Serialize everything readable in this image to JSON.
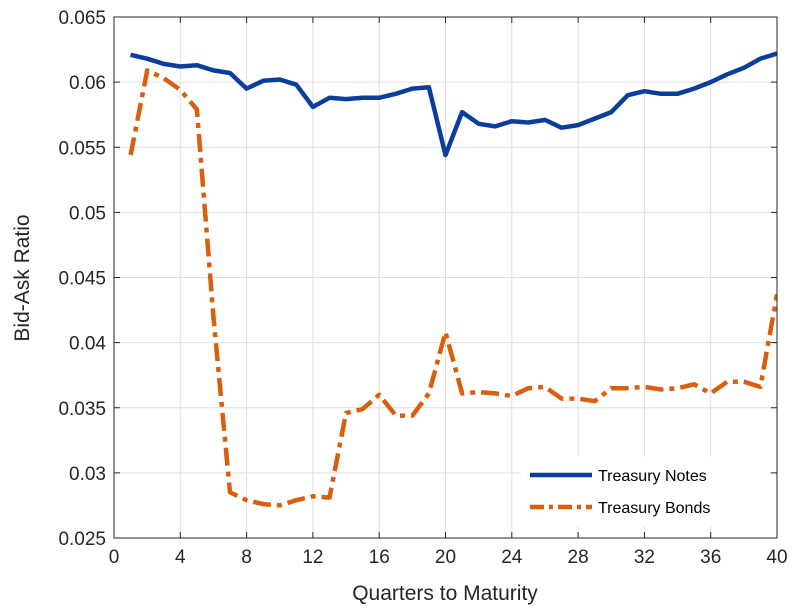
{
  "chart_data": {
    "type": "line",
    "xlabel": "Quarters to Maturity",
    "ylabel": "Bid-Ask Ratio",
    "xlim": [
      0,
      40
    ],
    "ylim": [
      0.025,
      0.065
    ],
    "xticks": [
      0,
      4,
      8,
      12,
      16,
      20,
      24,
      28,
      32,
      36,
      40
    ],
    "xtick_labels": [
      "0",
      "4",
      "8",
      "12",
      "16",
      "20",
      "24",
      "28",
      "32",
      "36",
      "40"
    ],
    "yticks": [
      0.025,
      0.03,
      0.035,
      0.04,
      0.045,
      0.05,
      0.055,
      0.06,
      0.065
    ],
    "ytick_labels": [
      "0.025",
      "0.03",
      "0.035",
      "0.04",
      "0.045",
      "0.05",
      "0.055",
      "0.06",
      "0.065"
    ],
    "grid": true,
    "legend_position": "bottom-right",
    "x": [
      1,
      2,
      3,
      4,
      5,
      6,
      7,
      8,
      9,
      10,
      11,
      12,
      13,
      14,
      15,
      16,
      17,
      18,
      19,
      20,
      21,
      22,
      23,
      24,
      25,
      26,
      27,
      28,
      29,
      30,
      31,
      32,
      33,
      34,
      35,
      36,
      37,
      38,
      39,
      40
    ],
    "series": [
      {
        "name": "Treasury Notes",
        "color": "#0b3d9c",
        "style": "solid",
        "values": [
          0.0621,
          0.0618,
          0.0614,
          0.0612,
          0.0613,
          0.0609,
          0.0607,
          0.0595,
          0.0601,
          0.0602,
          0.0598,
          0.0581,
          0.0588,
          0.0587,
          0.0588,
          0.0588,
          0.0591,
          0.0595,
          0.0596,
          0.0544,
          0.0577,
          0.0568,
          0.0566,
          0.057,
          0.0569,
          0.0571,
          0.0565,
          0.0567,
          0.0572,
          0.0577,
          0.059,
          0.0593,
          0.0591,
          0.0591,
          0.0595,
          0.06,
          0.0606,
          0.0611,
          0.0618,
          0.0622
        ]
      },
      {
        "name": "Treasury Bonds",
        "color": "#d95f0e",
        "style": "dashdot",
        "values": [
          0.0544,
          0.0609,
          0.0603,
          0.0594,
          0.0579,
          0.042,
          0.0285,
          0.0279,
          0.0276,
          0.0275,
          0.0279,
          0.0282,
          0.0281,
          0.0346,
          0.0349,
          0.036,
          0.0344,
          0.0344,
          0.0361,
          0.0408,
          0.0361,
          0.0362,
          0.0361,
          0.0359,
          0.0365,
          0.0366,
          0.0357,
          0.0357,
          0.0355,
          0.0365,
          0.0365,
          0.0366,
          0.0364,
          0.0365,
          0.0368,
          0.0361,
          0.037,
          0.037,
          0.0366,
          0.0437
        ]
      }
    ]
  }
}
